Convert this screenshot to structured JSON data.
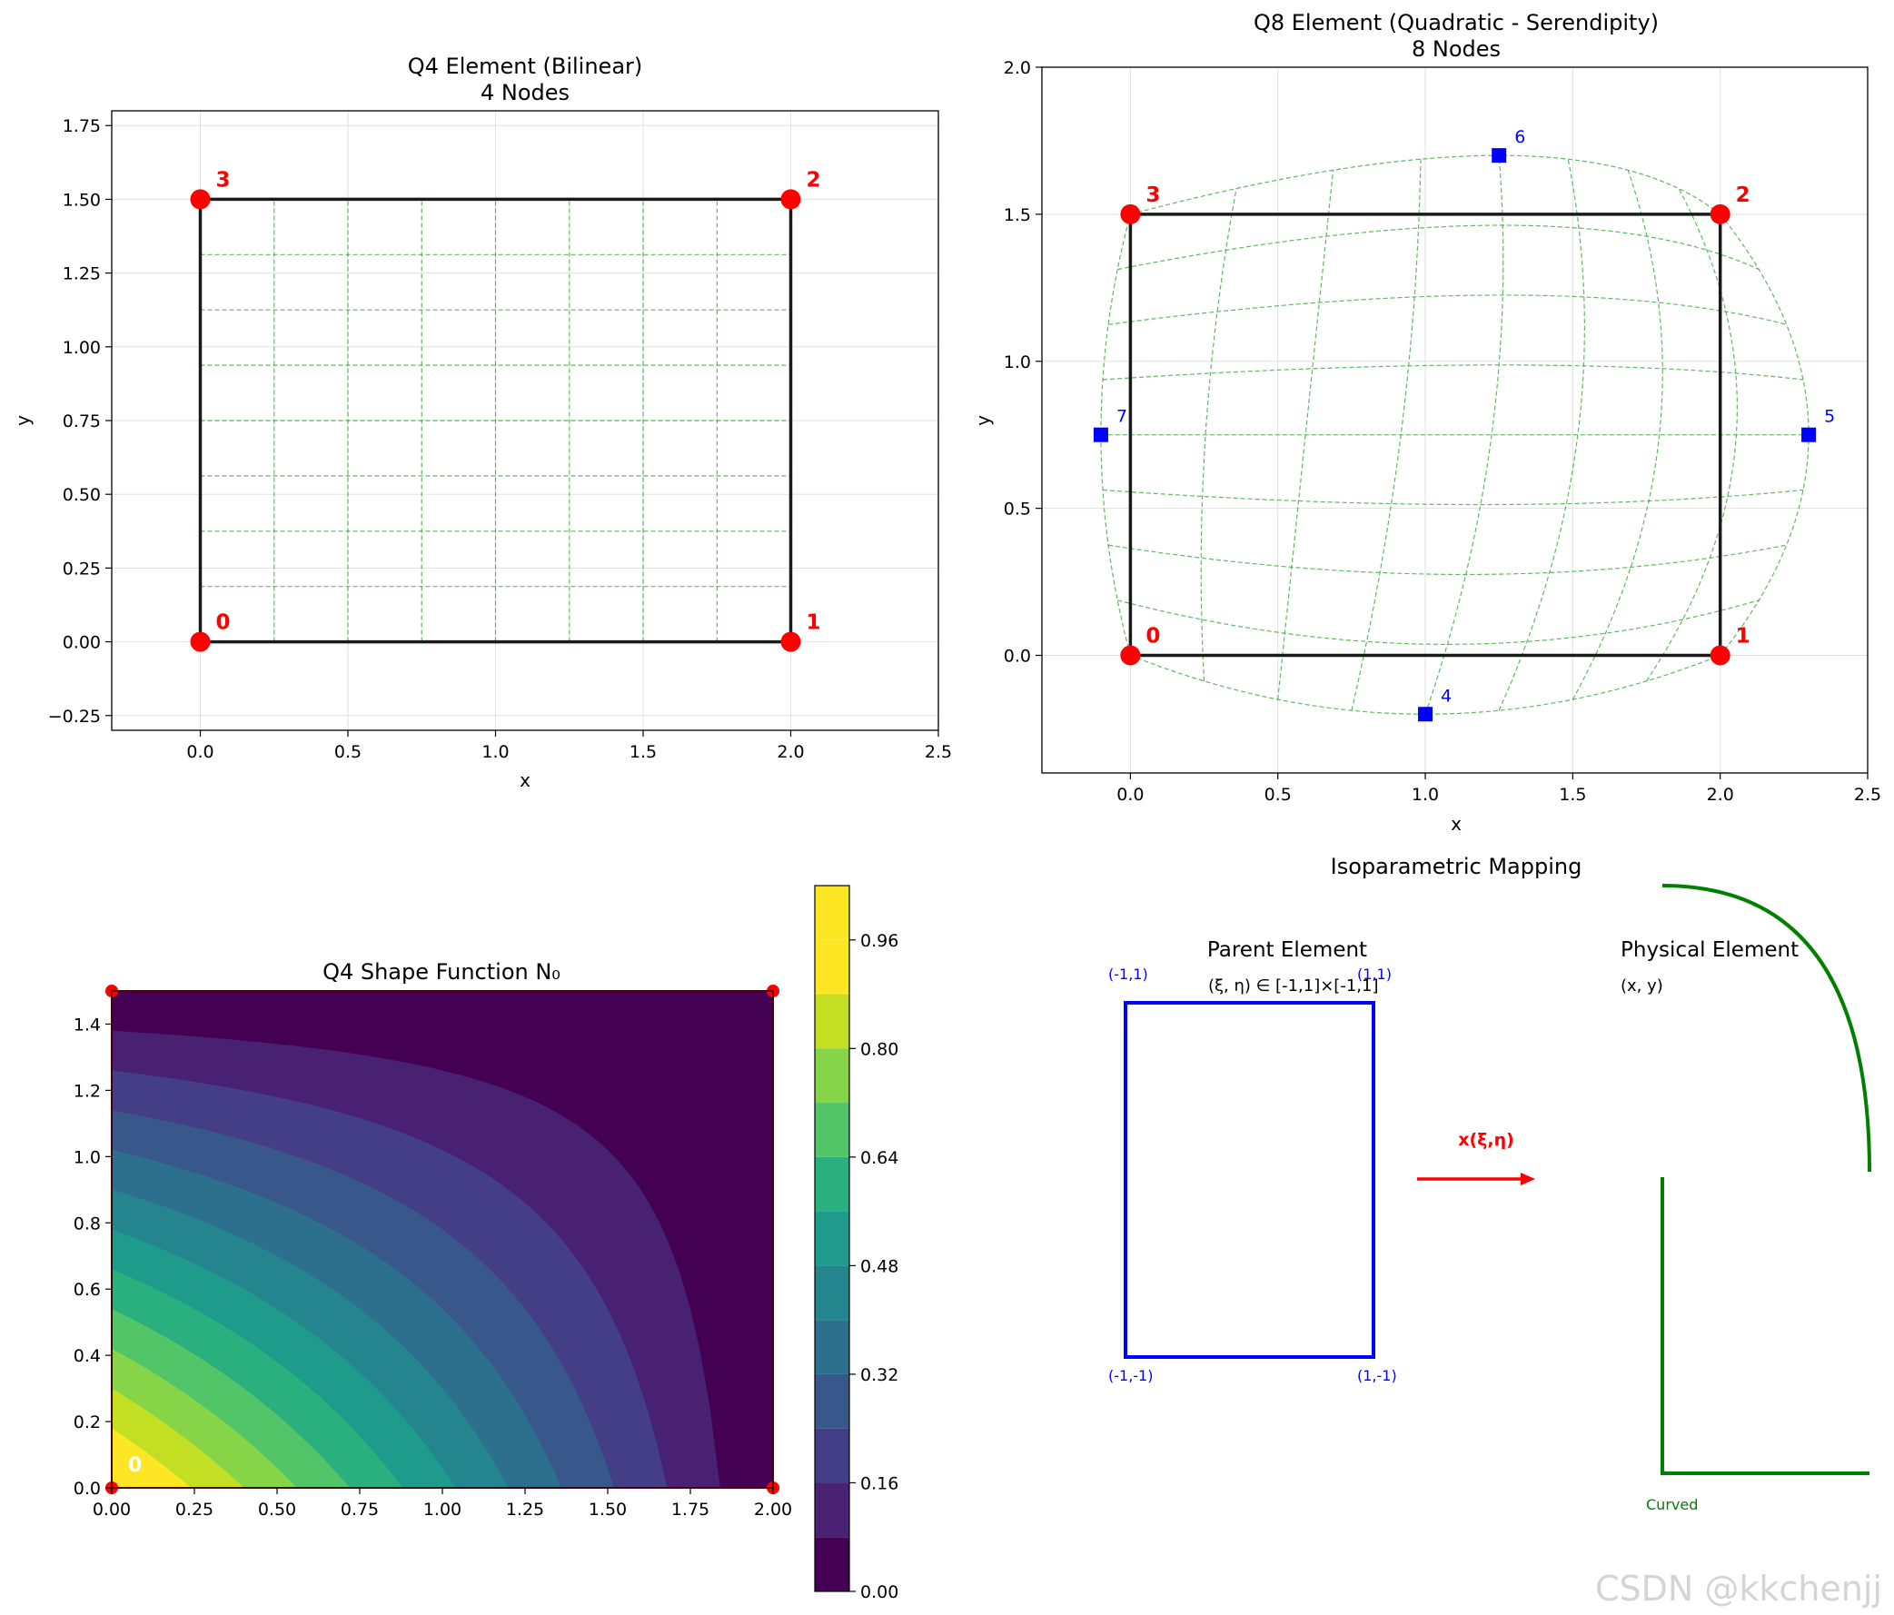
{
  "watermark": "CSDN @kkchenjj",
  "chart_data": [
    {
      "id": "q4",
      "type": "scatter",
      "title": "Q4 Element (Bilinear)",
      "subtitle": "4 Nodes",
      "xlabel": "x",
      "ylabel": "y",
      "xlim": [
        -0.3,
        2.5
      ],
      "ylim": [
        -0.3,
        1.8
      ],
      "xticks": [
        "0.0",
        "0.5",
        "1.0",
        "1.5",
        "2.0",
        "2.5"
      ],
      "yticks": [
        "−0.25",
        "0.00",
        "0.25",
        "0.50",
        "0.75",
        "1.00",
        "1.25",
        "1.50",
        "1.75"
      ],
      "grid": true,
      "corner_nodes": [
        {
          "label": "0",
          "x": 0.0,
          "y": 0.0
        },
        {
          "label": "1",
          "x": 2.0,
          "y": 0.0
        },
        {
          "label": "2",
          "x": 2.0,
          "y": 1.5
        },
        {
          "label": "3",
          "x": 0.0,
          "y": 1.5
        }
      ],
      "mid_nodes": [],
      "mesh_lines": 9,
      "colors": {
        "corner": "#ff0000",
        "edge": "#1a1a1a",
        "mesh": "#2ca02c",
        "grid": "#e0e0e0"
      }
    },
    {
      "id": "q8",
      "type": "scatter",
      "title": "Q8 Element (Quadratic - Serendipity)",
      "subtitle": "8 Nodes",
      "xlabel": "x",
      "ylabel": "y",
      "xlim": [
        -0.3,
        2.5
      ],
      "ylim": [
        -0.4,
        2.0
      ],
      "xticks": [
        "0.0",
        "0.5",
        "1.0",
        "1.5",
        "2.0",
        "2.5"
      ],
      "yticks": [
        "0.0",
        "0.5",
        "1.0",
        "1.5",
        "2.0"
      ],
      "grid": true,
      "corner_nodes": [
        {
          "label": "0",
          "x": 0.0,
          "y": 0.0
        },
        {
          "label": "1",
          "x": 2.0,
          "y": 0.0
        },
        {
          "label": "2",
          "x": 2.0,
          "y": 1.5
        },
        {
          "label": "3",
          "x": 0.0,
          "y": 1.5
        }
      ],
      "mid_nodes": [
        {
          "label": "4",
          "x": 1.0,
          "y": -0.2
        },
        {
          "label": "5",
          "x": 2.3,
          "y": 0.75
        },
        {
          "label": "6",
          "x": 1.25,
          "y": 1.7
        },
        {
          "label": "7",
          "x": -0.1,
          "y": 0.75
        }
      ],
      "mesh_lines": 9,
      "colors": {
        "corner": "#ff0000",
        "mid": "#0000ff",
        "edge": "#1a1a1a",
        "mesh": "#2ca02c",
        "grid": "#e0e0e0"
      }
    },
    {
      "id": "n0",
      "type": "heatmap",
      "title": "Q4 Shape Function N₀",
      "function": "N0 = (1 - x/2)(1 - y/1.5)",
      "xlim": [
        0.0,
        2.0
      ],
      "ylim": [
        0.0,
        1.5
      ],
      "levels": 12,
      "level_step": 0.08,
      "xticks": [
        "0.00",
        "0.25",
        "0.50",
        "0.75",
        "1.00",
        "1.25",
        "1.50",
        "1.75",
        "2.00"
      ],
      "yticks": [
        "0.0",
        "0.2",
        "0.4",
        "0.6",
        "0.8",
        "1.0",
        "1.2",
        "1.4"
      ],
      "colorbar_ticks": [
        "0.00",
        "0.16",
        "0.32",
        "0.48",
        "0.64",
        "0.80",
        "0.96"
      ],
      "colorbar_range": [
        0.0,
        1.04
      ],
      "node_label": "0",
      "colormap": [
        "#440154",
        "#482173",
        "#433e85",
        "#38588c",
        "#2d708e",
        "#25858e",
        "#1e9b8a",
        "#2ab07f",
        "#52c569",
        "#86d549",
        "#c2df23",
        "#fde725",
        "#fde725"
      ]
    }
  ],
  "mapping": {
    "title": "Isoparametric Mapping",
    "parent_title": "Parent Element",
    "parent_domain": "(ξ, η) ∈ [-1,1]×[-1,1]",
    "corner_labels": [
      "(-1,1)",
      "(1,1)",
      "(-1,-1)",
      "(1,-1)"
    ],
    "arrow_label": "x(ξ,η)",
    "physical_title": "Physical Element",
    "physical_subtitle": "(x, y)",
    "curved_label": "Curved",
    "colors": {
      "parent": "#0000ff",
      "arrow": "#ff0000",
      "physical": "#008000"
    }
  }
}
